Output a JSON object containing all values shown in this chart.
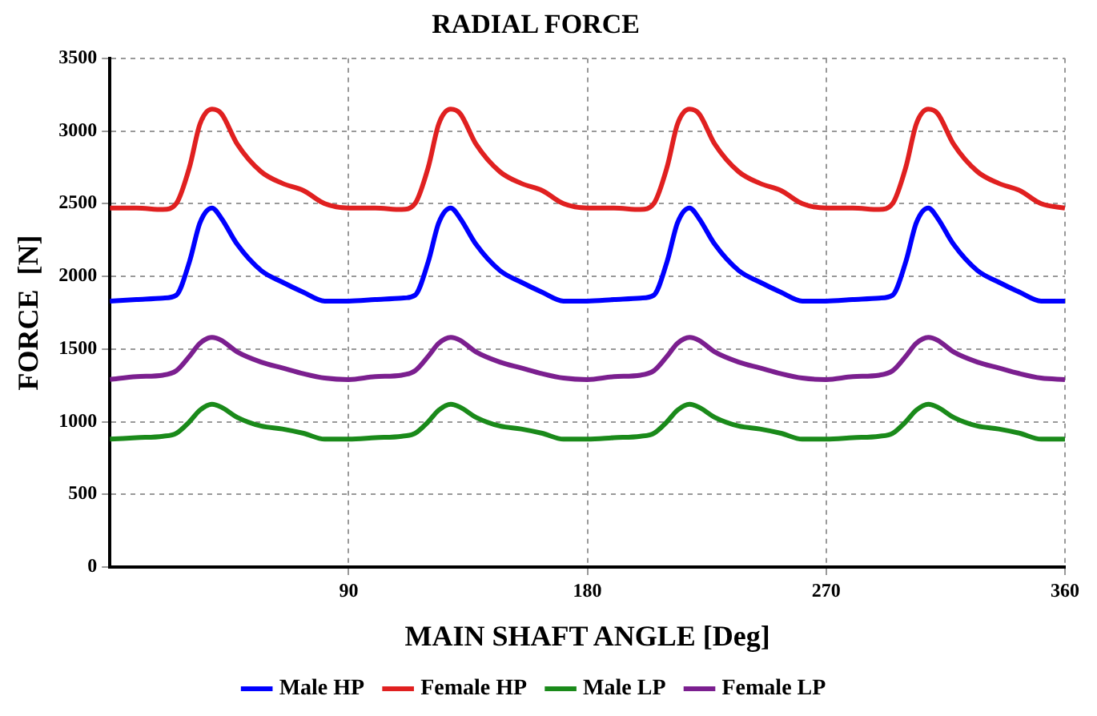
{
  "chart_data": {
    "type": "line",
    "title": "RADIAL FORCE",
    "xlabel": "MAIN SHAFT ANGLE [Deg]",
    "ylabel": "FORCE  [N]",
    "x": [
      0,
      10,
      20,
      25,
      30,
      34,
      38.5,
      42,
      48,
      57,
      65,
      73,
      81,
      90,
      100,
      110,
      115,
      120,
      124,
      128.5,
      132,
      138,
      147,
      155,
      163,
      171,
      180,
      190,
      200,
      205,
      210,
      214,
      218.5,
      222,
      228,
      237,
      245,
      253,
      261,
      270,
      280,
      290,
      295,
      300,
      304,
      308.5,
      312,
      318,
      327,
      335,
      343,
      351,
      360
    ],
    "series": [
      {
        "name": "Male HP",
        "color": "#0000ff",
        "values": [
          1830,
          1840,
          1850,
          1870,
          2100,
          2370,
          2470,
          2400,
          2220,
          2040,
          1960,
          1890,
          1830,
          1830,
          1840,
          1850,
          1870,
          2100,
          2370,
          2470,
          2400,
          2220,
          2040,
          1960,
          1890,
          1830,
          1830,
          1840,
          1850,
          1870,
          2100,
          2370,
          2470,
          2400,
          2220,
          2040,
          1960,
          1890,
          1830,
          1830,
          1840,
          1850,
          1870,
          2100,
          2370,
          2470,
          2400,
          2220,
          2040,
          1960,
          1890,
          1830,
          1830
        ]
      },
      {
        "name": "Female HP",
        "color": "#e02020",
        "values": [
          2470,
          2470,
          2460,
          2500,
          2750,
          3050,
          3150,
          3120,
          2910,
          2720,
          2640,
          2590,
          2500,
          2470,
          2470,
          2460,
          2500,
          2750,
          3050,
          3150,
          3120,
          2910,
          2720,
          2640,
          2590,
          2500,
          2470,
          2470,
          2460,
          2500,
          2750,
          3050,
          3150,
          3120,
          2910,
          2720,
          2640,
          2590,
          2500,
          2470,
          2470,
          2460,
          2500,
          2750,
          3050,
          3150,
          3120,
          2910,
          2720,
          2640,
          2590,
          2500,
          2470
        ]
      },
      {
        "name": "Male LP",
        "color": "#1a8a1a",
        "values": [
          880,
          890,
          900,
          920,
          1000,
          1080,
          1120,
          1100,
          1030,
          970,
          950,
          920,
          880,
          880,
          890,
          900,
          920,
          1000,
          1080,
          1120,
          1100,
          1030,
          970,
          950,
          920,
          880,
          880,
          890,
          900,
          920,
          1000,
          1080,
          1120,
          1100,
          1030,
          970,
          950,
          920,
          880,
          880,
          890,
          900,
          920,
          1000,
          1080,
          1120,
          1100,
          1030,
          970,
          950,
          920,
          880,
          880
        ]
      },
      {
        "name": "Female LP",
        "color": "#7b1f8f",
        "values": [
          1290,
          1310,
          1320,
          1350,
          1450,
          1540,
          1580,
          1560,
          1480,
          1410,
          1370,
          1330,
          1300,
          1290,
          1310,
          1320,
          1350,
          1450,
          1540,
          1580,
          1560,
          1480,
          1410,
          1370,
          1330,
          1300,
          1290,
          1310,
          1320,
          1350,
          1450,
          1540,
          1580,
          1560,
          1480,
          1410,
          1370,
          1330,
          1300,
          1290,
          1310,
          1320,
          1350,
          1450,
          1540,
          1580,
          1560,
          1480,
          1410,
          1370,
          1330,
          1300,
          1290
        ]
      }
    ],
    "xlim": [
      0,
      360
    ],
    "xticks": [
      90,
      180,
      270,
      360
    ],
    "ylim": [
      0,
      3500
    ],
    "yticks": [
      0,
      500,
      1000,
      1500,
      2000,
      2500,
      3000,
      3500
    ],
    "grid": true,
    "legend": "bottom",
    "marker": "none",
    "line_style": "solid"
  }
}
